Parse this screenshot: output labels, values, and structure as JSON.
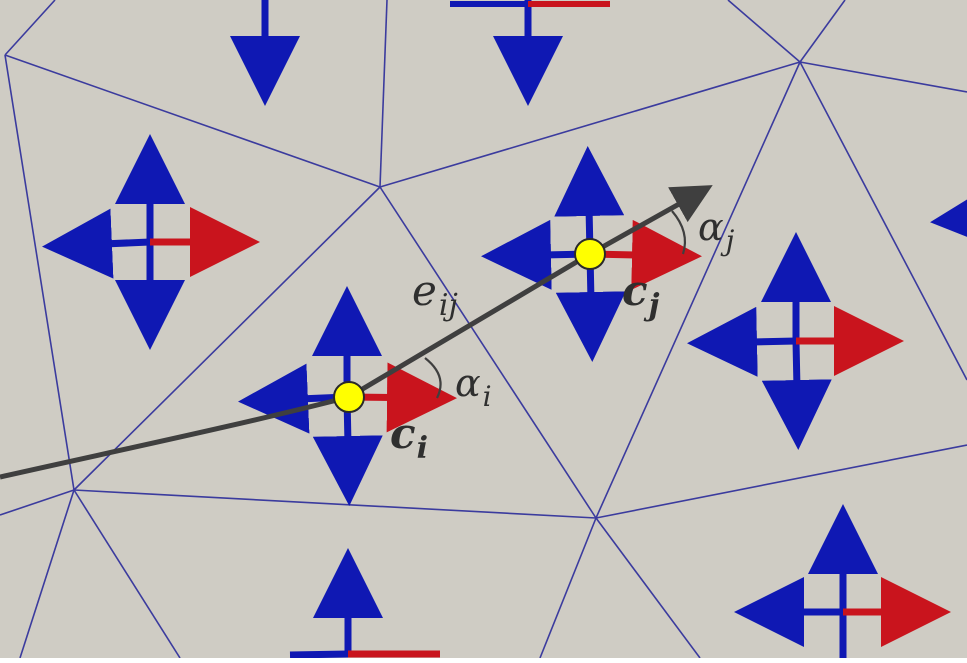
{
  "colors": {
    "background": "#cfccc4",
    "mesh_edge": "#3b3b9e",
    "blue_arrow": "#0f18b3",
    "red_arrow": "#c9141d",
    "path": "#3f3f3f",
    "node_fill": "#ffff00",
    "node_stroke": "#2a2a2a",
    "label": "#2f2f2f"
  },
  "labels": {
    "edge": {
      "base": "e",
      "sub": "ij"
    },
    "alpha_i": {
      "base": "α",
      "sub": "i"
    },
    "alpha_j": {
      "base": "α",
      "sub": "j"
    },
    "c_i": {
      "base": "c",
      "sub": "i"
    },
    "c_j": {
      "base": "c",
      "sub": "j"
    }
  },
  "icons": {
    "node": "circle",
    "direction_arrow": "arrowhead"
  }
}
